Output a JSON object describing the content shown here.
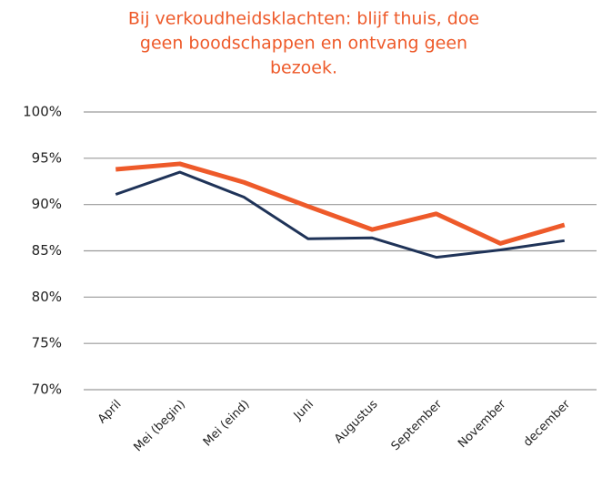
{
  "chart_data": {
    "type": "line",
    "title": [
      "Bij verkoudheidsklachten: blijf thuis, doe",
      "geen boodschappen en ontvang geen",
      "bezoek."
    ],
    "title_color": "#ee5a2a",
    "categories": [
      "April",
      "Mei (begin)",
      "Mei (eind)",
      "Juni",
      "Augustus",
      "September",
      "November",
      "december"
    ],
    "series": [
      {
        "color": "#1f3358",
        "values": [
          91.1,
          93.5,
          90.8,
          86.3,
          86.4,
          84.3,
          85.1,
          86.1
        ]
      },
      {
        "color": "#ee5a2a",
        "values": [
          93.8,
          94.4,
          92.4,
          89.8,
          87.3,
          89.0,
          85.8,
          87.8
        ]
      }
    ],
    "ylim": [
      70,
      100
    ],
    "yticks": [
      {
        "value": 70,
        "label": "70%"
      },
      {
        "value": 75,
        "label": "75%"
      },
      {
        "value": 80,
        "label": "80%"
      },
      {
        "value": 85,
        "label": "85%"
      },
      {
        "value": 90,
        "label": "90%"
      },
      {
        "value": 95,
        "label": "95%"
      },
      {
        "value": 100,
        "label": "100%"
      }
    ],
    "grid": true
  }
}
